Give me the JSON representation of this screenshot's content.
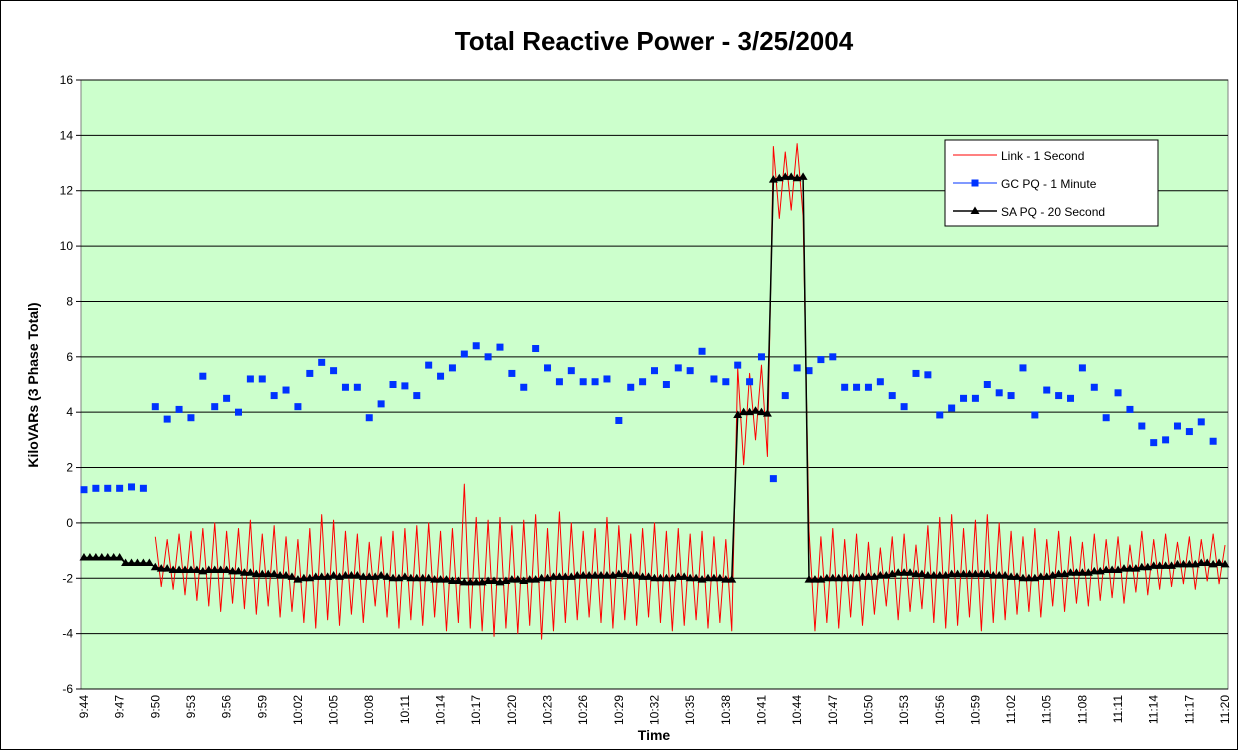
{
  "chart_data": {
    "type": "line",
    "title": "Total Reactive Power - 3/25/2004",
    "x_label": "Time",
    "y_label": "KiloVARs (3 Phase Total)",
    "categories": [
      "9:44",
      null,
      null,
      null,
      null,
      null,
      "9:47",
      null,
      null,
      null,
      null,
      null,
      "9:50",
      null,
      null,
      null,
      null,
      null,
      "9:53",
      null,
      null,
      null,
      null,
      null,
      "9:56",
      null,
      null,
      null,
      null,
      null,
      "9:59",
      null,
      null,
      null,
      null,
      null,
      "10:02",
      null,
      null,
      null,
      null,
      null,
      "10:05",
      null,
      null,
      null,
      null,
      null,
      "10:08",
      null,
      null,
      null,
      null,
      null,
      "10:11",
      null,
      null,
      null,
      null,
      null,
      "10:14",
      null,
      null,
      null,
      null,
      null,
      "10:17",
      null,
      null,
      null,
      null,
      null,
      "10:20",
      null,
      null,
      null,
      null,
      null,
      "10:23",
      null,
      null,
      null,
      null,
      null,
      "10:26",
      null,
      null,
      null,
      null,
      null,
      "10:29",
      null,
      null,
      null,
      null,
      null,
      "10:32",
      null,
      null,
      null,
      null,
      null,
      "10:35",
      null,
      null,
      null,
      null,
      null,
      "10:38",
      null,
      null,
      null,
      null,
      null,
      "10:41",
      null,
      null,
      null,
      null,
      null,
      "10:44",
      null,
      null,
      null,
      null,
      null,
      "10:47",
      null,
      null,
      null,
      null,
      null,
      "10:50",
      null,
      null,
      null,
      null,
      null,
      "10:53",
      null,
      null,
      null,
      null,
      null,
      "10:56",
      null,
      null,
      null,
      null,
      null,
      "10:59",
      null,
      null,
      null,
      null,
      null,
      "11:02",
      null,
      null,
      null,
      null,
      null,
      "11:05",
      null,
      null,
      null,
      null,
      null,
      "11:08",
      null,
      null,
      null,
      null,
      null,
      "11:11",
      null,
      null,
      null,
      null,
      null,
      "11:14",
      null,
      null,
      null,
      null,
      null,
      "11:17",
      null,
      null,
      null,
      null,
      null,
      "11:20"
    ],
    "series": [
      {
        "name": "Link - 1 Second",
        "color": "#ff0000",
        "marker": "none",
        "values": [
          null,
          null,
          null,
          null,
          null,
          null,
          null,
          null,
          null,
          null,
          null,
          null,
          -0.5,
          -2.3,
          -0.6,
          -2.4,
          -0.4,
          -2.6,
          -0.3,
          -2.8,
          -0.2,
          -3.0,
          0.0,
          -3.2,
          -0.3,
          -2.9,
          -0.2,
          -3.1,
          0.1,
          -3.3,
          -0.4,
          -3.0,
          -0.1,
          -3.4,
          -0.5,
          -3.2,
          -0.6,
          -3.6,
          -0.2,
          -3.8,
          0.3,
          -3.5,
          0.1,
          -3.7,
          -0.3,
          -3.3,
          -0.4,
          -3.6,
          -0.7,
          -3.0,
          -0.5,
          -3.4,
          -0.3,
          -3.8,
          -0.2,
          -3.5,
          -0.1,
          -3.7,
          0.0,
          -3.4,
          -0.3,
          -3.9,
          -0.2,
          -3.6,
          1.4,
          -3.8,
          0.2,
          -3.9,
          0.1,
          -4.1,
          0.2,
          -3.8,
          -0.1,
          -4.0,
          0.1,
          -3.7,
          0.3,
          -4.2,
          -0.2,
          -3.9,
          0.4,
          -3.6,
          0.0,
          -3.5,
          -0.3,
          -3.4,
          -0.2,
          -3.6,
          0.2,
          -3.8,
          -0.1,
          -3.5,
          -0.4,
          -3.7,
          -0.2,
          -3.4,
          0.0,
          -3.6,
          -0.3,
          -3.9,
          -0.2,
          -3.7,
          -0.4,
          -3.5,
          -0.3,
          -3.8,
          -0.5,
          -3.6,
          -0.6,
          -3.9,
          5.6,
          2.1,
          5.4,
          3.0,
          5.7,
          2.4,
          13.6,
          11.0,
          13.4,
          11.3,
          13.7,
          11.1,
          -0.3,
          -3.9,
          -0.5,
          -3.6,
          -0.2,
          -3.8,
          -0.6,
          -3.4,
          -0.4,
          -3.7,
          -0.7,
          -3.3,
          -0.9,
          -3.0,
          -0.5,
          -3.5,
          -0.4,
          -3.2,
          -0.8,
          -3.1,
          -0.1,
          -3.6,
          0.2,
          -3.8,
          0.3,
          -3.7,
          -0.2,
          -3.4,
          0.1,
          -3.9,
          0.3,
          -3.6,
          0.0,
          -3.5,
          -0.3,
          -3.3,
          -0.5,
          -3.2,
          -0.2,
          -3.4,
          -0.6,
          -3.0,
          -0.3,
          -3.2,
          -0.5,
          -2.9,
          -0.7,
          -3.0,
          -0.4,
          -2.8,
          -0.6,
          -2.7,
          -0.5,
          -2.9,
          -0.8,
          -2.5,
          -0.3,
          -2.6,
          -0.6,
          -2.4,
          -0.4,
          -2.3,
          -0.7,
          -2.2,
          -0.5,
          -2.4,
          -0.6,
          -2.1,
          -0.4,
          -2.2,
          -0.8
        ]
      },
      {
        "name": "GC PQ - 1 Minute",
        "color": "#0033ff",
        "marker": "square",
        "values": [
          1.2,
          null,
          1.25,
          null,
          1.25,
          null,
          1.25,
          null,
          1.3,
          null,
          1.25,
          null,
          4.2,
          null,
          3.75,
          null,
          4.1,
          null,
          3.8,
          null,
          5.3,
          null,
          4.2,
          null,
          4.5,
          null,
          4.0,
          null,
          5.2,
          null,
          5.2,
          null,
          4.6,
          null,
          4.8,
          null,
          4.2,
          null,
          5.4,
          null,
          5.8,
          null,
          5.5,
          null,
          4.9,
          null,
          4.9,
          null,
          3.8,
          null,
          4.3,
          null,
          5.0,
          null,
          4.95,
          null,
          4.6,
          null,
          5.7,
          null,
          5.3,
          null,
          5.6,
          null,
          6.1,
          null,
          6.4,
          null,
          6.0,
          null,
          6.35,
          null,
          5.4,
          null,
          4.9,
          null,
          6.3,
          null,
          5.6,
          null,
          5.1,
          null,
          5.5,
          null,
          5.1,
          null,
          5.1,
          null,
          5.2,
          null,
          3.7,
          null,
          4.9,
          null,
          5.1,
          null,
          5.5,
          null,
          5.0,
          null,
          5.6,
          null,
          5.5,
          null,
          6.2,
          null,
          5.2,
          null,
          5.1,
          null,
          5.7,
          null,
          5.1,
          null,
          6.0,
          null,
          1.6,
          null,
          4.6,
          null,
          5.6,
          null,
          5.5,
          null,
          5.9,
          null,
          6.0,
          null,
          4.9,
          null,
          4.9,
          null,
          4.9,
          null,
          5.1,
          null,
          4.6,
          null,
          4.2,
          null,
          5.4,
          null,
          5.35,
          null,
          3.9,
          null,
          4.15,
          null,
          4.5,
          null,
          4.5,
          null,
          5.0,
          null,
          4.7,
          null,
          4.6,
          null,
          5.6,
          null,
          3.9,
          null,
          4.8,
          null,
          4.6,
          null,
          4.5,
          null,
          5.6,
          null,
          4.9,
          null,
          3.8,
          null,
          4.7,
          null,
          4.1,
          null,
          3.5,
          null,
          2.9,
          null,
          3.0,
          null,
          3.5,
          null,
          3.3,
          null,
          3.65,
          null,
          2.95,
          null,
          null
        ]
      },
      {
        "name": "SA PQ - 20 Second",
        "color": "#000000",
        "marker": "triangle",
        "values": [
          -1.25,
          -1.25,
          -1.25,
          -1.25,
          -1.25,
          -1.25,
          -1.25,
          -1.45,
          -1.45,
          -1.45,
          -1.45,
          -1.45,
          -1.6,
          -1.65,
          -1.65,
          -1.7,
          -1.7,
          -1.7,
          -1.7,
          -1.7,
          -1.75,
          -1.7,
          -1.7,
          -1.7,
          -1.7,
          -1.75,
          -1.75,
          -1.8,
          -1.8,
          -1.85,
          -1.85,
          -1.85,
          -1.85,
          -1.9,
          -1.9,
          -1.95,
          -2.05,
          -2.0,
          -2.0,
          -1.95,
          -1.95,
          -1.95,
          -1.9,
          -1.95,
          -1.9,
          -1.9,
          -1.9,
          -1.95,
          -1.95,
          -1.95,
          -1.9,
          -1.95,
          -2.0,
          -2.0,
          -1.95,
          -2.0,
          -2.0,
          -2.0,
          -2.0,
          -2.05,
          -2.05,
          -2.05,
          -2.1,
          -2.1,
          -2.15,
          -2.15,
          -2.15,
          -2.15,
          -2.1,
          -2.1,
          -2.15,
          -2.1,
          -2.05,
          -2.05,
          -2.1,
          -2.05,
          -2.05,
          -2.0,
          -2.0,
          -1.95,
          -1.95,
          -1.95,
          -1.95,
          -1.9,
          -1.9,
          -1.9,
          -1.9,
          -1.9,
          -1.9,
          -1.9,
          -1.85,
          -1.85,
          -1.9,
          -1.9,
          -1.95,
          -1.95,
          -2.0,
          -2.0,
          -2.0,
          -2.0,
          -1.95,
          -1.95,
          -2.0,
          -2.0,
          -2.05,
          -2.0,
          -2.0,
          -2.0,
          -2.05,
          -2.05,
          3.9,
          4.0,
          4.0,
          4.05,
          4.0,
          3.95,
          12.4,
          12.45,
          12.5,
          12.5,
          12.45,
          12.5,
          -2.05,
          -2.05,
          -2.05,
          -2.0,
          -2.0,
          -2.0,
          -2.0,
          -2.0,
          -2.0,
          -1.95,
          -1.95,
          -1.95,
          -1.9,
          -1.9,
          -1.85,
          -1.8,
          -1.8,
          -1.8,
          -1.85,
          -1.85,
          -1.9,
          -1.9,
          -1.9,
          -1.9,
          -1.85,
          -1.85,
          -1.85,
          -1.85,
          -1.85,
          -1.85,
          -1.85,
          -1.9,
          -1.9,
          -1.9,
          -1.95,
          -1.95,
          -2.0,
          -2.0,
          -2.0,
          -1.95,
          -1.95,
          -1.9,
          -1.85,
          -1.85,
          -1.8,
          -1.8,
          -1.8,
          -1.8,
          -1.75,
          -1.75,
          -1.7,
          -1.7,
          -1.7,
          -1.65,
          -1.65,
          -1.65,
          -1.6,
          -1.6,
          -1.55,
          -1.55,
          -1.55,
          -1.55,
          -1.5,
          -1.5,
          -1.5,
          -1.5,
          -1.45,
          -1.45,
          -1.5,
          -1.45,
          -1.5
        ]
      }
    ],
    "ylim": [
      -6,
      16
    ],
    "yticks": [
      -6,
      -4,
      -2,
      0,
      2,
      4,
      6,
      8,
      10,
      12,
      14,
      16
    ],
    "grid": true,
    "plot_background": "#ccffcc",
    "legend": "upper right"
  }
}
